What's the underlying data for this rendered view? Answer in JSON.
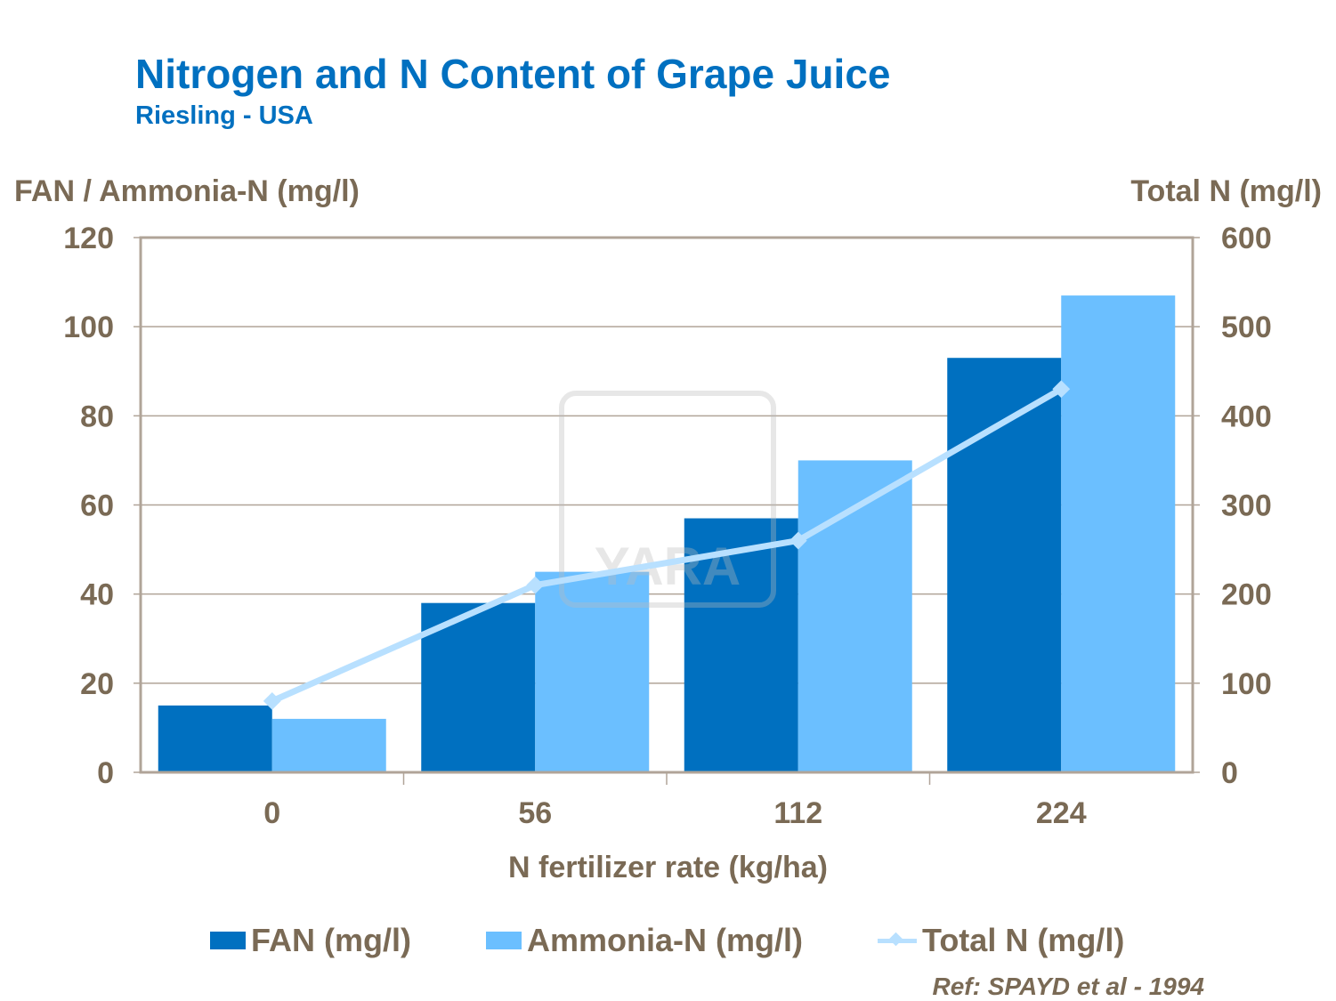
{
  "chart_data": {
    "type": "bar",
    "title": "Nitrogen and N Content of Grape Juice",
    "subtitle": "Riesling - USA",
    "xlabel": "N fertilizer rate (kg/ha)",
    "ylabel": "FAN / Ammonia-N (mg/l)",
    "y2label": "Total N (mg/l)",
    "categories": [
      "0",
      "56",
      "112",
      "224"
    ],
    "ylim": [
      0,
      120
    ],
    "y2lim": [
      0,
      600
    ],
    "yticks": [
      0,
      20,
      40,
      60,
      80,
      100,
      120
    ],
    "y2ticks": [
      0,
      100,
      200,
      300,
      400,
      500,
      600
    ],
    "grid": true,
    "legend": "bottom",
    "series": [
      {
        "name": "FAN (mg/l)",
        "type": "bar",
        "axis": "left",
        "color": "#0070c0",
        "values": [
          15,
          38,
          57,
          93
        ]
      },
      {
        "name": "Ammonia-N (mg/l)",
        "type": "bar",
        "axis": "left",
        "color": "#6bbfff",
        "values": [
          12,
          45,
          70,
          107
        ]
      },
      {
        "name": "Total N (mg/l)",
        "type": "line",
        "axis": "right",
        "color": "#b8e0ff",
        "values": [
          80,
          210,
          260,
          430
        ]
      }
    ],
    "reference": "Ref: SPAYD et al - 1994",
    "watermark": "YARA"
  }
}
